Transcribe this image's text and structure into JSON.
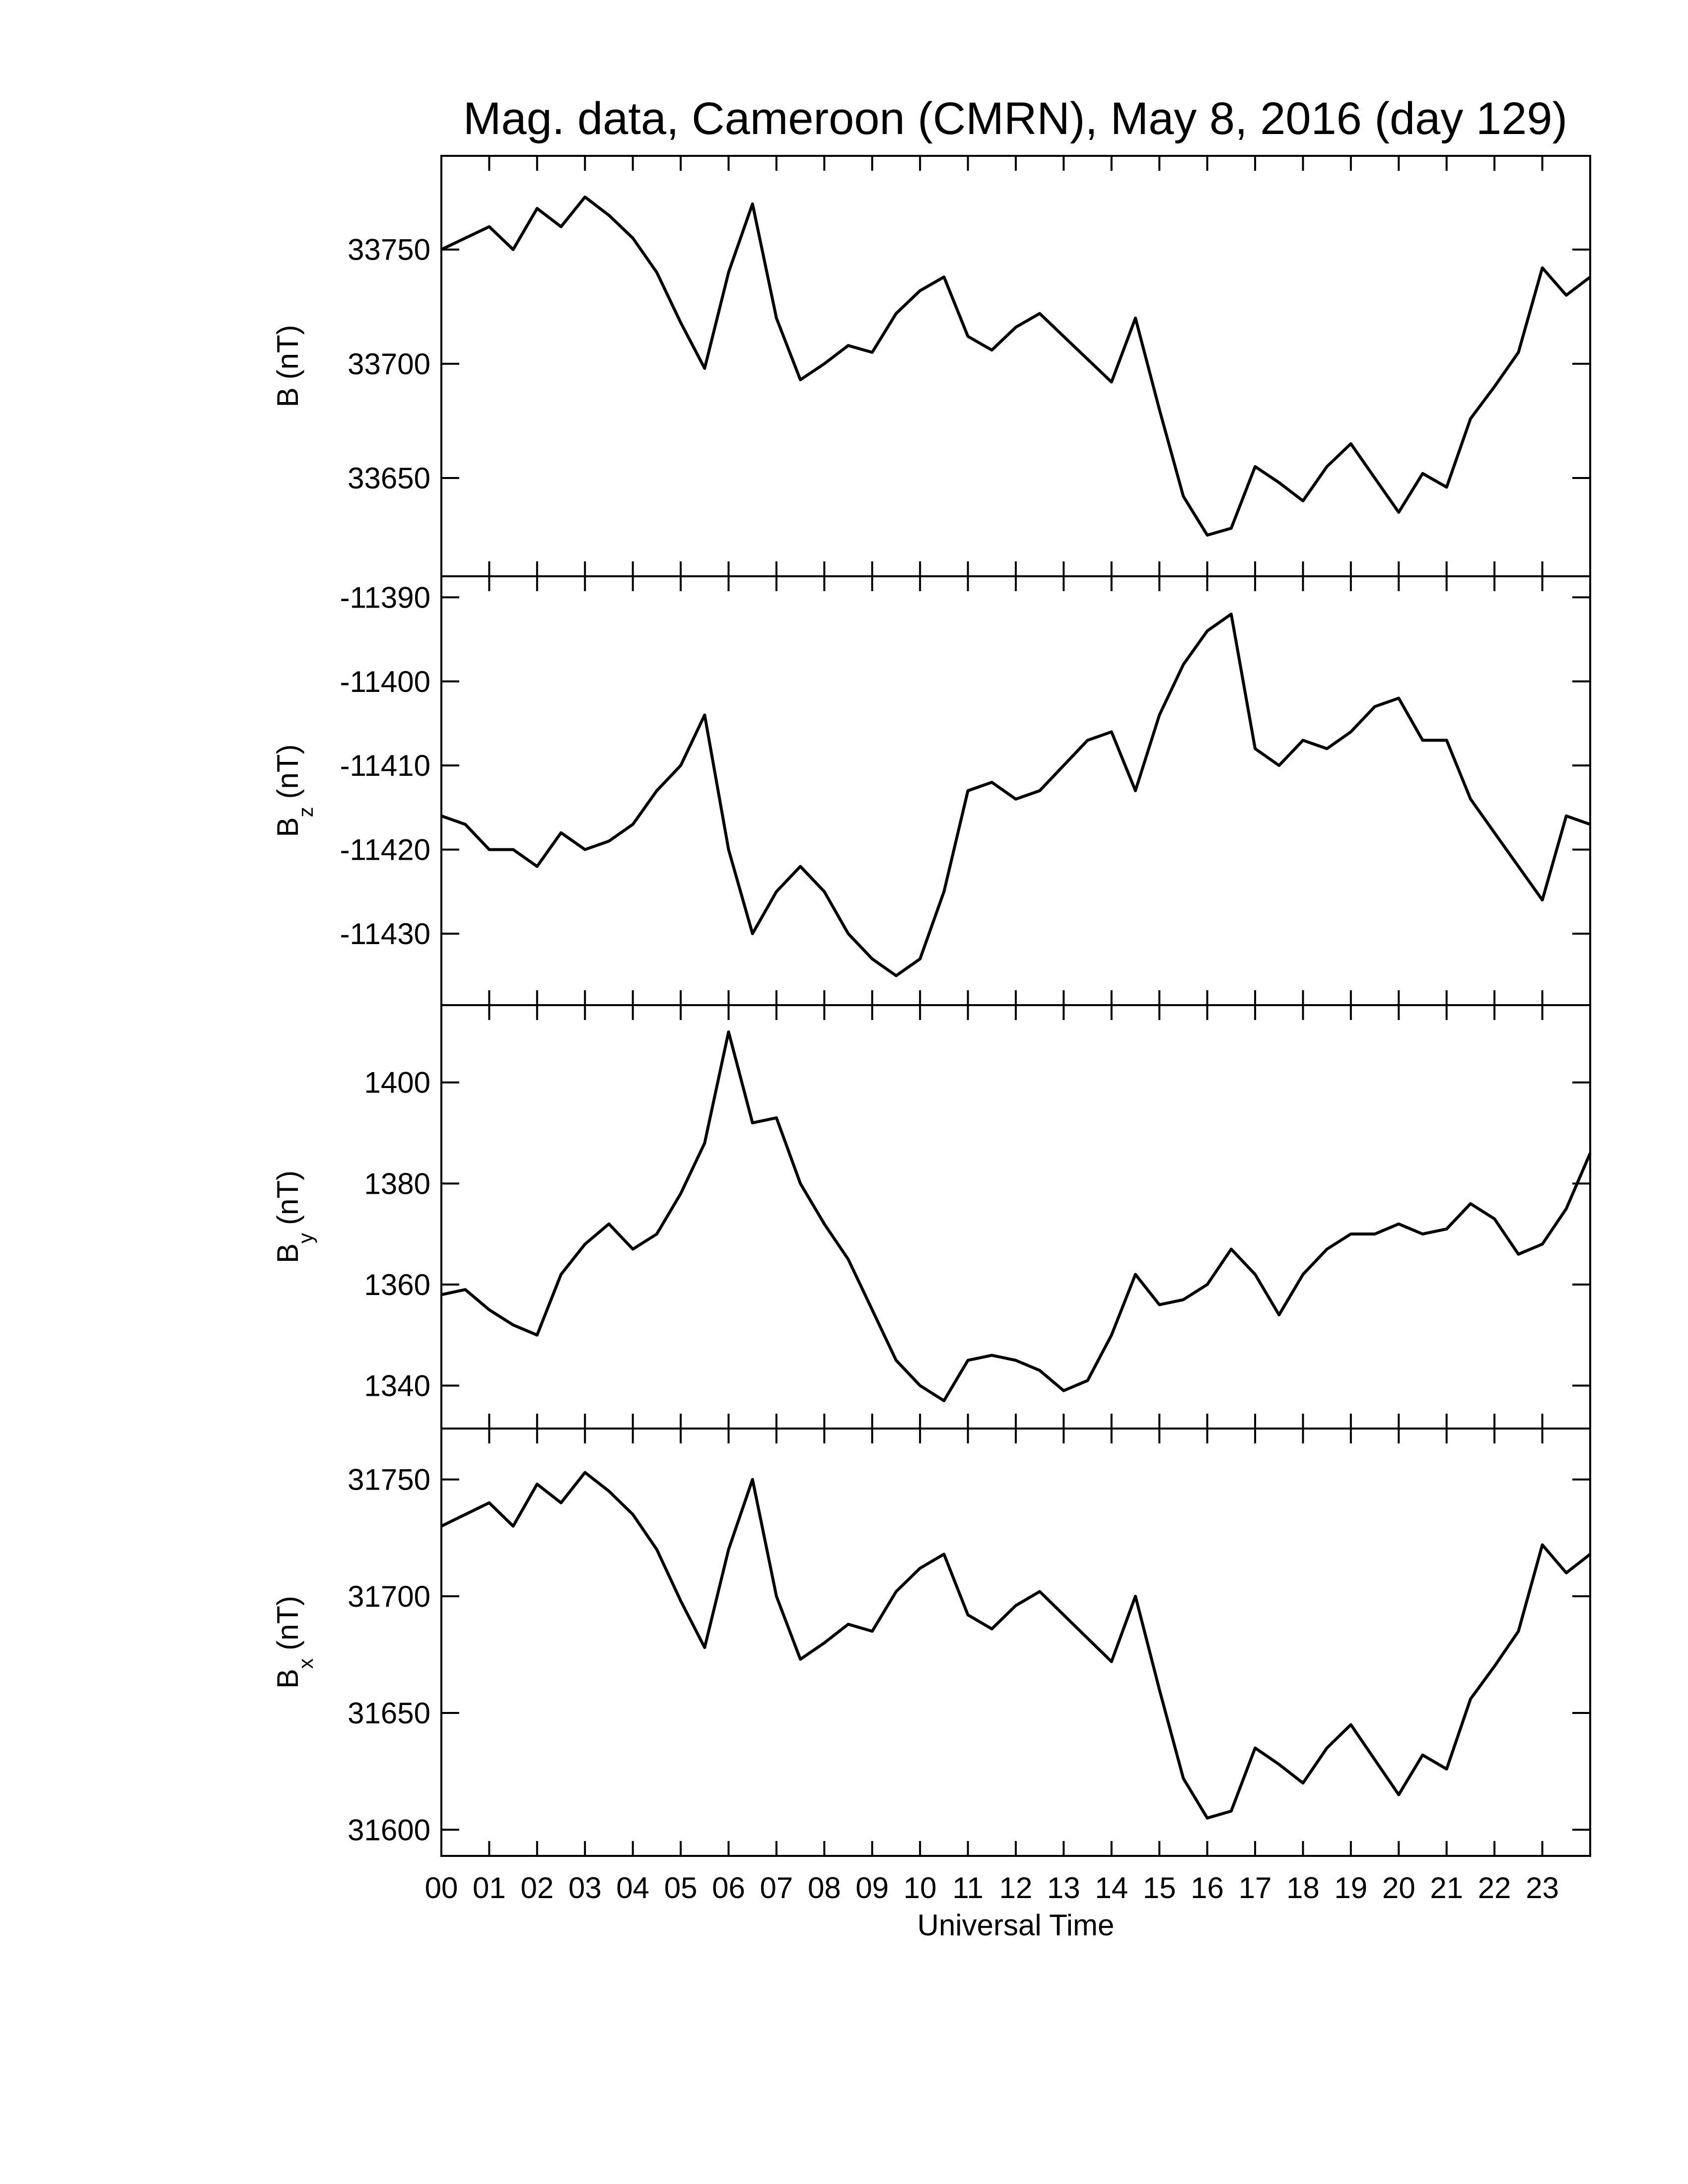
{
  "chart_data": [
    {
      "type": "line",
      "title": "Mag. data, Cameroon (CMRN), May 8, 2016 (day 129)",
      "ylabel": {
        "text": "B",
        "unit": "(nT)"
      },
      "x": [
        0,
        0.5,
        1,
        1.5,
        2,
        2.5,
        3,
        3.5,
        4,
        4.5,
        5,
        5.5,
        6,
        6.5,
        7,
        7.5,
        8,
        8.5,
        9,
        9.5,
        10,
        10.5,
        11,
        11.5,
        12,
        12.5,
        13,
        13.5,
        14,
        14.5,
        15,
        15.5,
        16,
        16.5,
        17,
        17.5,
        18,
        18.5,
        19,
        19.5,
        20,
        20.5,
        21,
        21.5,
        22,
        22.5,
        23,
        23.5,
        24
      ],
      "values": [
        33750,
        33755,
        33760,
        33750,
        33768,
        33760,
        33773,
        33765,
        33755,
        33740,
        33718,
        33698,
        33740,
        33770,
        33720,
        33693,
        33700,
        33708,
        33705,
        33722,
        33732,
        33738,
        33712,
        33706,
        33716,
        33722,
        33712,
        33702,
        33692,
        33720,
        33680,
        33642,
        33625,
        33628,
        33655,
        33648,
        33640,
        33655,
        33665,
        33650,
        33635,
        33652,
        33646,
        33676,
        33690,
        33705,
        33742,
        33730,
        33738
      ],
      "color": "#000000",
      "xlim": [
        0,
        24
      ],
      "ylim": [
        33607,
        33791
      ],
      "yticks": [
        33650,
        33700,
        33750
      ]
    },
    {
      "type": "line",
      "ylabel": {
        "text": "B",
        "sub": "z",
        "unit": "(nT)"
      },
      "x": [
        0,
        0.5,
        1,
        1.5,
        2,
        2.5,
        3,
        3.5,
        4,
        4.5,
        5,
        5.5,
        6,
        6.5,
        7,
        7.5,
        8,
        8.5,
        9,
        9.5,
        10,
        10.5,
        11,
        11.5,
        12,
        12.5,
        13,
        13.5,
        14,
        14.5,
        15,
        15.5,
        16,
        16.5,
        17,
        17.5,
        18,
        18.5,
        19,
        19.5,
        20,
        20.5,
        21,
        21.5,
        22,
        22.5,
        23,
        23.5,
        24
      ],
      "values": [
        -11416,
        -11417,
        -11420,
        -11420,
        -11422,
        -11418,
        -11420,
        -11419,
        -11417,
        -11413,
        -11410,
        -11404,
        -11420,
        -11430,
        -11425,
        -11422,
        -11425,
        -11430,
        -11433,
        -11435,
        -11433,
        -11425,
        -11413,
        -11412,
        -11414,
        -11413,
        -11410,
        -11407,
        -11406,
        -11413,
        -11404,
        -11398,
        -11394,
        -11392,
        -11408,
        -11410,
        -11407,
        -11408,
        -11406,
        -11403,
        -11402,
        -11407,
        -11407,
        -11414,
        -11418,
        -11422,
        -11426,
        -11416,
        -11417
      ],
      "color": "#000000",
      "xlim": [
        0,
        24
      ],
      "ylim": [
        -11438.5,
        -11387.5
      ],
      "yticks": [
        -11430,
        -11420,
        -11410,
        -11400,
        -11390
      ]
    },
    {
      "type": "line",
      "ylabel": {
        "text": "B",
        "sub": "y",
        "unit": "(nT)"
      },
      "x": [
        0,
        0.5,
        1,
        1.5,
        2,
        2.5,
        3,
        3.5,
        4,
        4.5,
        5,
        5.5,
        6,
        6.5,
        7,
        7.5,
        8,
        8.5,
        9,
        9.5,
        10,
        10.5,
        11,
        11.5,
        12,
        12.5,
        13,
        13.5,
        14,
        14.5,
        15,
        15.5,
        16,
        16.5,
        17,
        17.5,
        18,
        18.5,
        19,
        19.5,
        20,
        20.5,
        21,
        21.5,
        22,
        22.5,
        23,
        23.5,
        24
      ],
      "values": [
        1358,
        1359,
        1355,
        1352,
        1350,
        1362,
        1368,
        1372,
        1367,
        1370,
        1378,
        1388,
        1410,
        1392,
        1393,
        1380,
        1372,
        1365,
        1355,
        1345,
        1340,
        1337,
        1345,
        1346,
        1345,
        1343,
        1339,
        1341,
        1350,
        1362,
        1356,
        1357,
        1360,
        1367,
        1362,
        1354,
        1362,
        1367,
        1370,
        1370,
        1372,
        1370,
        1371,
        1376,
        1373,
        1366,
        1368,
        1375,
        1386
      ],
      "color": "#000000",
      "xlim": [
        0,
        24
      ],
      "ylim": [
        1331.5,
        1415.3
      ],
      "yticks": [
        1340,
        1360,
        1380,
        1400
      ]
    },
    {
      "type": "line",
      "ylabel": {
        "text": "B",
        "sub": "x",
        "unit": "(nT)"
      },
      "xlabel": "Universal Time",
      "x": [
        0,
        0.5,
        1,
        1.5,
        2,
        2.5,
        3,
        3.5,
        4,
        4.5,
        5,
        5.5,
        6,
        6.5,
        7,
        7.5,
        8,
        8.5,
        9,
        9.5,
        10,
        10.5,
        11,
        11.5,
        12,
        12.5,
        13,
        13.5,
        14,
        14.5,
        15,
        15.5,
        16,
        16.5,
        17,
        17.5,
        18,
        18.5,
        19,
        19.5,
        20,
        20.5,
        21,
        21.5,
        22,
        22.5,
        23,
        23.5,
        24
      ],
      "values": [
        31730,
        31735,
        31740,
        31730,
        31748,
        31740,
        31753,
        31745,
        31735,
        31720,
        31698,
        31678,
        31720,
        31750,
        31700,
        31673,
        31680,
        31688,
        31685,
        31702,
        31712,
        31718,
        31692,
        31686,
        31696,
        31702,
        31692,
        31682,
        31672,
        31700,
        31660,
        31622,
        31605,
        31608,
        31635,
        31628,
        31620,
        31635,
        31645,
        31630,
        31615,
        31632,
        31626,
        31656,
        31670,
        31685,
        31722,
        31710,
        31718
      ],
      "color": "#000000",
      "xlim": [
        0,
        24
      ],
      "ylim": [
        31588.8,
        31771.8
      ],
      "yticks": [
        31600,
        31650,
        31700,
        31750
      ],
      "xticks": [
        {
          "value": 0,
          "label": "00"
        },
        {
          "value": 1,
          "label": "01"
        },
        {
          "value": 2,
          "label": "02"
        },
        {
          "value": 3,
          "label": "03"
        },
        {
          "value": 4,
          "label": "04"
        },
        {
          "value": 5,
          "label": "05"
        },
        {
          "value": 6,
          "label": "06"
        },
        {
          "value": 7,
          "label": "07"
        },
        {
          "value": 8,
          "label": "08"
        },
        {
          "value": 9,
          "label": "09"
        },
        {
          "value": 10,
          "label": "10"
        },
        {
          "value": 11,
          "label": "11"
        },
        {
          "value": 12,
          "label": "12"
        },
        {
          "value": 13,
          "label": "13"
        },
        {
          "value": 14,
          "label": "14"
        },
        {
          "value": 15,
          "label": "15"
        },
        {
          "value": 16,
          "label": "16"
        },
        {
          "value": 17,
          "label": "17"
        },
        {
          "value": 18,
          "label": "18"
        },
        {
          "value": 19,
          "label": "19"
        },
        {
          "value": 20,
          "label": "20"
        },
        {
          "value": 21,
          "label": "21"
        },
        {
          "value": 22,
          "label": "22"
        },
        {
          "value": 23,
          "label": "23"
        }
      ]
    }
  ]
}
